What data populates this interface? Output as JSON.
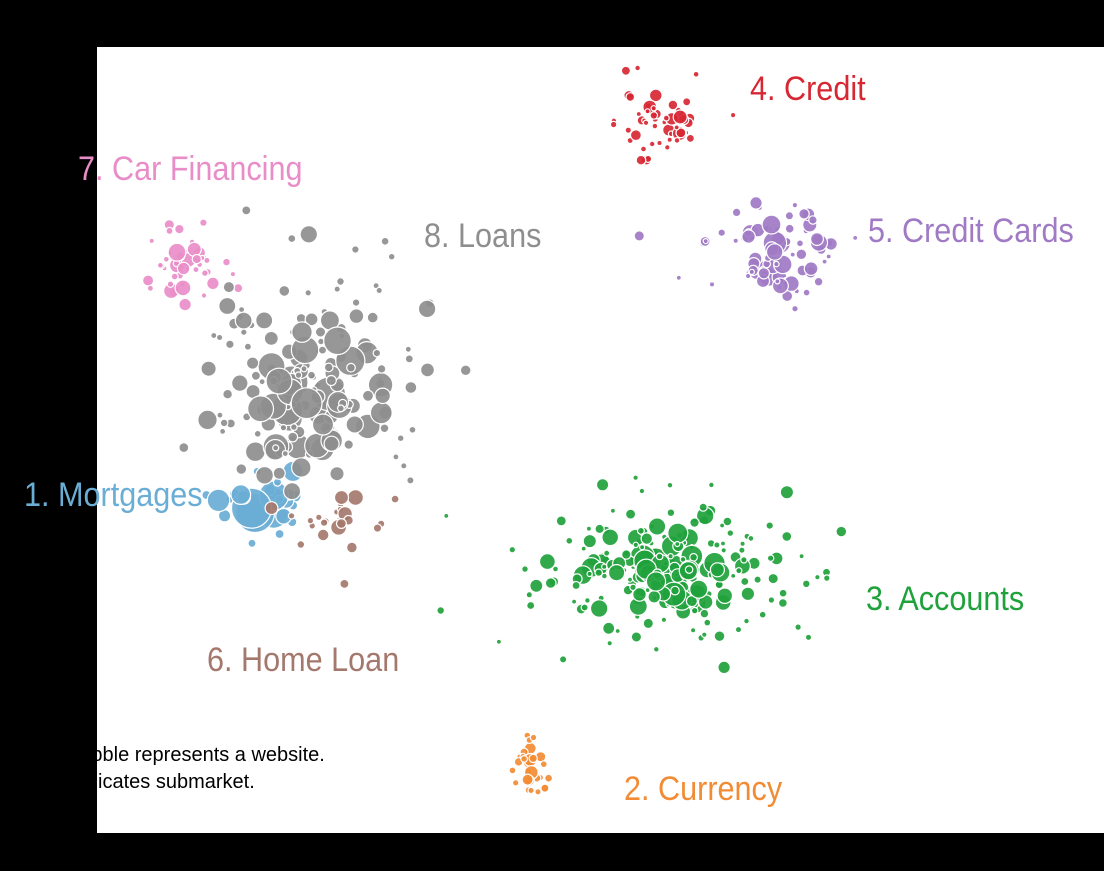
{
  "chart_data": {
    "type": "scatter",
    "title": "",
    "xlabel": "",
    "ylabel": "",
    "grid": false,
    "clusters": [
      {
        "id": 1,
        "name": "1. Mortgages",
        "color": "#6aadd5"
      },
      {
        "id": 2,
        "name": "2. Currency",
        "color": "#f28c34"
      },
      {
        "id": 3,
        "name": "3. Accounts",
        "color": "#1fa23c"
      },
      {
        "id": 4,
        "name": "4. Credit",
        "color": "#d72733"
      },
      {
        "id": 5,
        "name": "5. Credit Cards",
        "color": "#a07ac4"
      },
      {
        "id": 6,
        "name": "6. Home Loan",
        "color": "#a5786d"
      },
      {
        "id": 7,
        "name": "7. Car Financing",
        "color": "#e98dc8"
      },
      {
        "id": 8,
        "name": "8. Loans",
        "color": "#8e8e8e"
      }
    ],
    "notes": [
      "Each bubble represents a website.",
      "Color indicates submarket."
    ]
  }
}
